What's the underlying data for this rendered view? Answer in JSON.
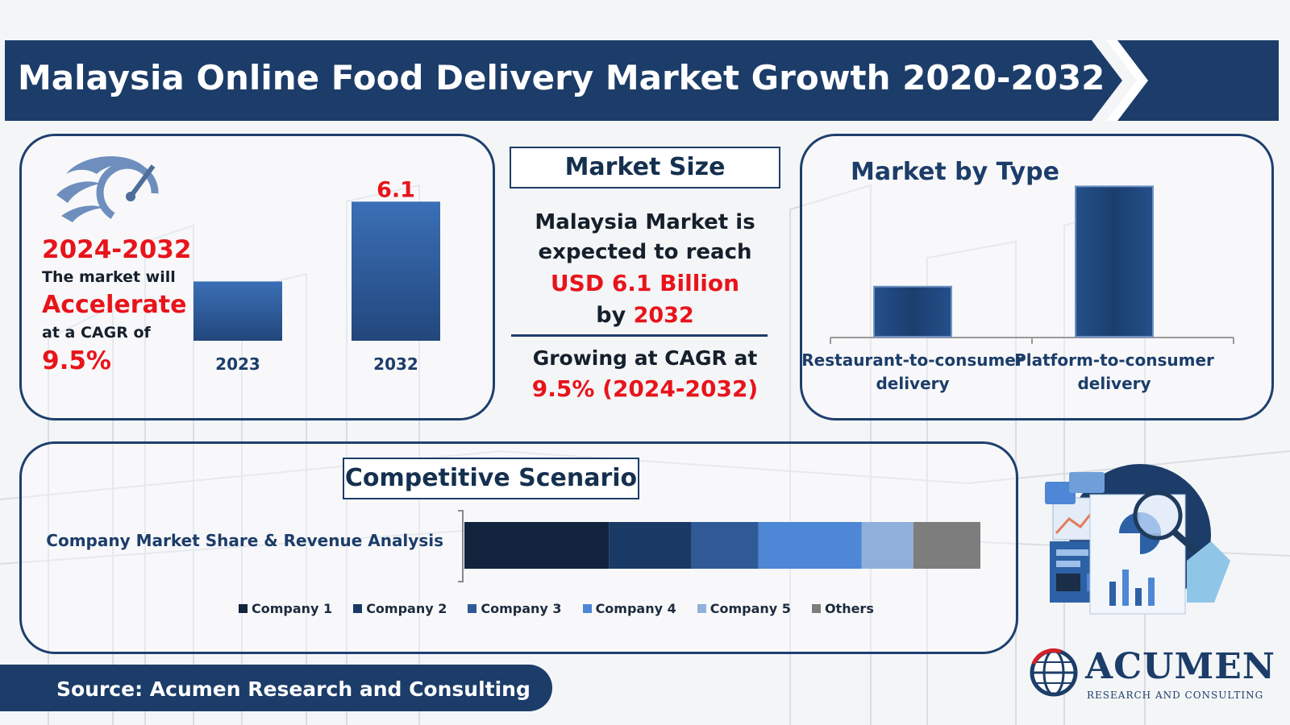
{
  "title": "Malaysia Online Food Delivery Market Growth 2020-2032",
  "colors": {
    "navy": "#1c3d69",
    "accent_red": "#e8141b",
    "bar_blue": "#2f5ea3"
  },
  "left_panel": {
    "period": "2024-2032",
    "line1": "The market will",
    "emphasis": "Accelerate",
    "line2": "at a CAGR of",
    "cagr": "9.5%",
    "icon": "speedometer-icon"
  },
  "market_size": {
    "heading": "Market Size",
    "line1": "Malaysia Market is",
    "line2": "expected to reach",
    "value": "USD 6.1 Billion",
    "by_prefix": "by",
    "year": "2032",
    "growing": "Growing at CAGR at",
    "cagr_text": "9.5% (2024-2032)"
  },
  "market_by_type": {
    "heading": "Market by Type"
  },
  "competitive": {
    "heading": "Competitive Scenario",
    "bar_label": "Company Market Share & Revenue Analysis"
  },
  "footer": {
    "source": "Source: Acumen Research and Consulting"
  },
  "brand": {
    "name": "ACUMEN",
    "tagline": "RESEARCH AND CONSULTING"
  },
  "illustration_icon": "analytics-dashboard-icon",
  "chart_data": [
    {
      "type": "bar",
      "categories": [
        "2023",
        "2032"
      ],
      "values": [
        2.6,
        6.1
      ],
      "data_labels": [
        "",
        "6.1"
      ],
      "ylim": [
        0,
        6.5
      ]
    },
    {
      "type": "bar",
      "title": "Market by Type",
      "categories": [
        "Restaurant-to-consumer delivery",
        "Platform-to-consumer delivery"
      ],
      "values": [
        1.1,
        3.3
      ],
      "ylim": [
        0,
        3.5
      ]
    },
    {
      "type": "bar",
      "orientation": "horizontal-stacked",
      "categories": [
        "Company Market Share & Revenue Analysis"
      ],
      "series": [
        {
          "name": "Company 1",
          "values": [
            28
          ],
          "color": "#11233d"
        },
        {
          "name": "Company 2",
          "values": [
            16
          ],
          "color": "#1a3a66"
        },
        {
          "name": "Company 3",
          "values": [
            13
          ],
          "color": "#2f5a96"
        },
        {
          "name": "Company 4",
          "values": [
            20
          ],
          "color": "#4d87d6"
        },
        {
          "name": "Company 5",
          "values": [
            10
          ],
          "color": "#90b0dc"
        },
        {
          "name": "Others",
          "values": [
            13
          ],
          "color": "#7d7d7d"
        }
      ]
    }
  ]
}
